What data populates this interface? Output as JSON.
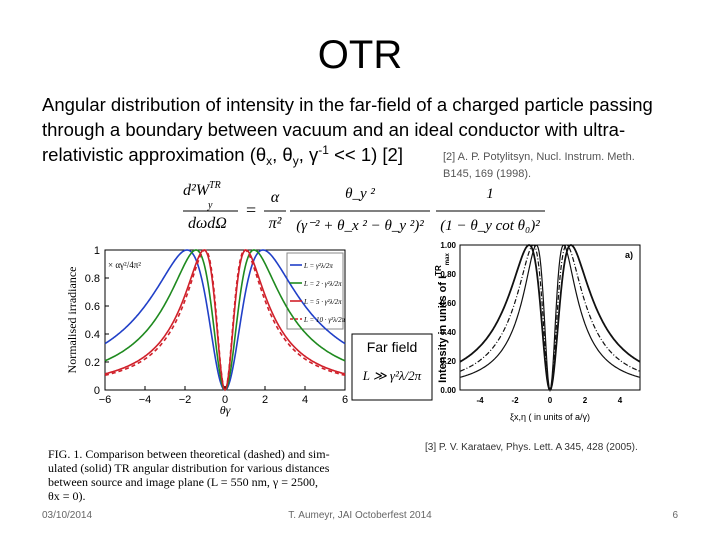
{
  "title": "OTR",
  "body": {
    "lines": [
      "Angular distribution of intensity in the far-field of a charged particle passing",
      "through a boundary between vacuum and an ideal conductor with ultra-"
    ],
    "last_line": [
      "relativistic approximation (θ",
      "x",
      ", θ",
      "y",
      ", γ",
      "-1",
      " << 1) [2]"
    ]
  },
  "reference_2": [
    "[2] A. P. Potylitsyn, Nucl. Instrum. Meth.",
    "B145, 169 (1998)."
  ],
  "formula": {
    "lhs_num": "d²W",
    "lhs_sup": "TR",
    "lhs_sub": "y",
    "lhs_den": "dωdΩ",
    "eq": "=",
    "c_num": "α",
    "c_den": "π²",
    "f1_num": "θ_y ²",
    "f1_den": "(γ⁻² + θ_x ² − θ_y ²)²",
    "f2_num": "1",
    "f2_den": "(1 − θ_y cot θ₀)²"
  },
  "left_plot": {
    "y_label": "Normalised irradiance",
    "x_label": "θγ",
    "factor": "× αγ²/4π²",
    "yticks": [
      "0",
      "0.2",
      "0.4",
      "0.6",
      "0.8",
      "1"
    ],
    "xticks": [
      "−6",
      "−4",
      "−2",
      "0",
      "2",
      "4",
      "6"
    ],
    "legend": [
      "L = γ²λ/2π",
      "L = 2 · γ²λ/2π",
      "L = 5 · γ²λ/2π",
      "L = 10 · γ²λ/2π"
    ]
  },
  "far_field": {
    "label": "Far field",
    "condition": "L ≫ γ²λ/2π"
  },
  "right_plot": {
    "y_label": "Intensity in units of I",
    "y_label_sup": "TR",
    "y_label_sub": "max",
    "panel": "a)",
    "yticks": [
      "1.00",
      "0.80",
      "0.60",
      "0.40",
      "0.20",
      "0.00"
    ],
    "xticks": [
      "-4",
      "-2",
      "0",
      "2",
      "4"
    ],
    "x_label": "ξx,η ( in units of a/γ)"
  },
  "reference_3": "[3] P. V. Karataev, Phys. Lett. A 345, 428 (2005).",
  "caption": [
    "FIG. 1.  Comparison between theoretical (dashed) and sim-",
    "ulated (solid) TR angular distribution for various distances",
    "between source and image plane (L = 550 nm, γ = 2500,",
    "θx = 0)."
  ],
  "footer": {
    "date": "03/10/2014",
    "center": "T. Aumeyr, JAI Octoberfest 2014",
    "page": "6"
  }
}
